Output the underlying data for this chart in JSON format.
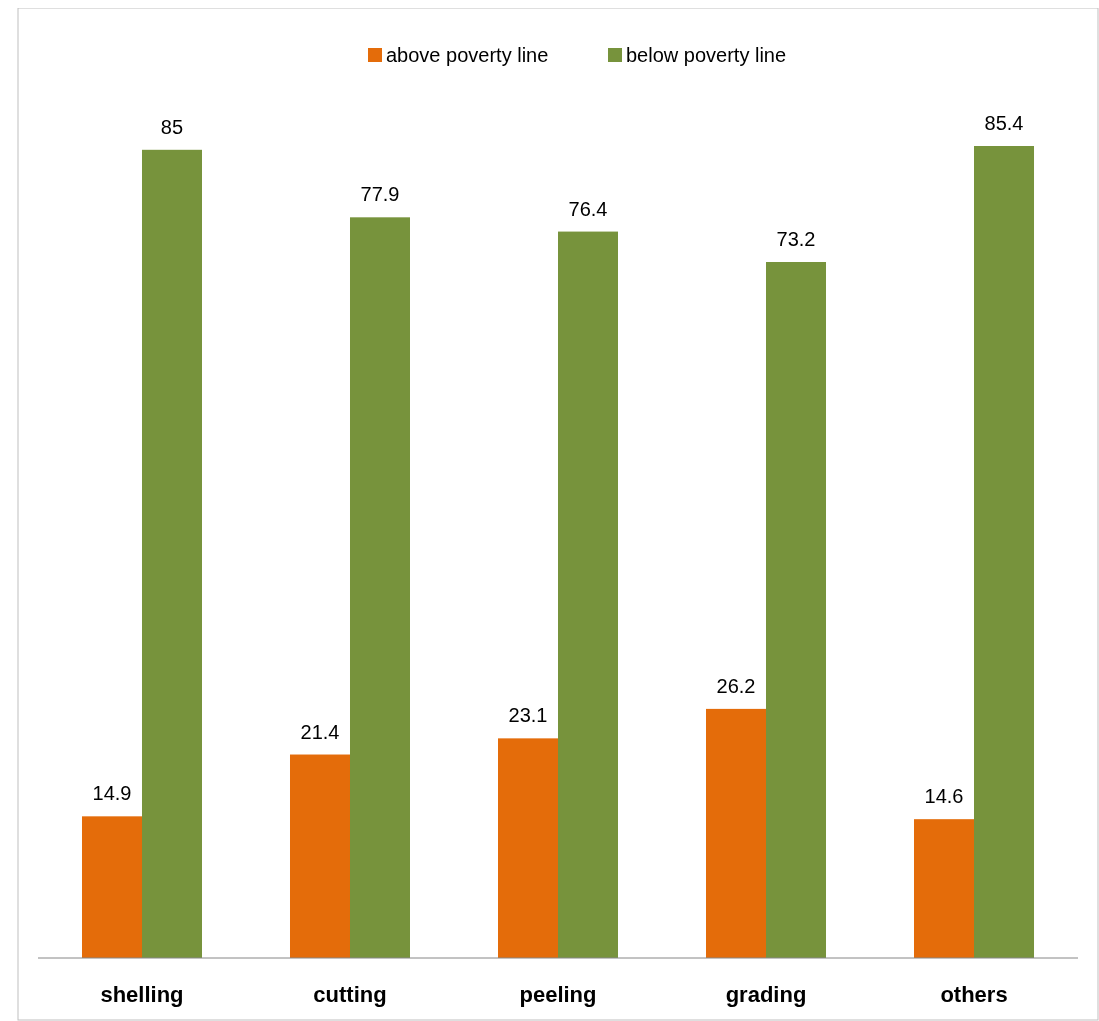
{
  "chart_data": {
    "type": "bar",
    "categories": [
      "shelling",
      "cutting",
      "peeling",
      "grading",
      "others"
    ],
    "series": [
      {
        "name": "above poverty line",
        "color": "#e46c0a",
        "values": [
          14.9,
          21.4,
          23.1,
          26.2,
          14.6
        ]
      },
      {
        "name": "below poverty line",
        "color": "#77933c",
        "values": [
          85,
          77.9,
          76.4,
          73.2,
          85.4
        ]
      }
    ],
    "data_labels": true,
    "legend": "top",
    "grid": false
  }
}
